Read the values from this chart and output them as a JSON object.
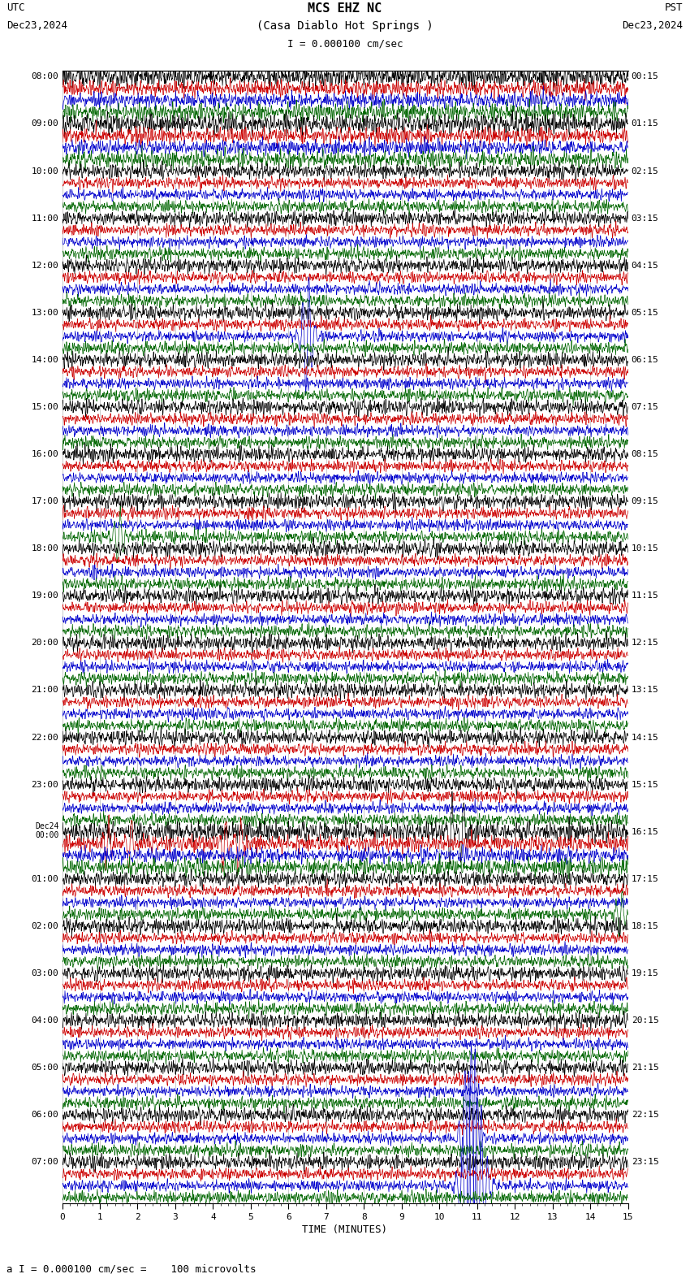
{
  "title_line1": "MCS EHZ NC",
  "title_line2": "(Casa Diablo Hot Springs )",
  "scale_text": "I = 0.000100 cm/sec",
  "footer_text": "a I = 0.000100 cm/sec =    100 microvolts",
  "utc_label": "UTC",
  "utc_date": "Dec23,2024",
  "pst_label": "PST",
  "pst_date": "Dec23,2024",
  "xlabel": "TIME (MINUTES)",
  "x_ticks": [
    0,
    1,
    2,
    3,
    4,
    5,
    6,
    7,
    8,
    9,
    10,
    11,
    12,
    13,
    14,
    15
  ],
  "bg_color": "#ffffff",
  "trace_colors": [
    "#000000",
    "#cc0000",
    "#0000cc",
    "#006600"
  ],
  "grid_color": "#888888",
  "num_hour_groups": 24,
  "traces_per_group": 4,
  "xmin": 0,
  "xmax": 15,
  "utc_times": [
    "08:00",
    "09:00",
    "10:00",
    "11:00",
    "12:00",
    "13:00",
    "14:00",
    "15:00",
    "16:00",
    "17:00",
    "18:00",
    "19:00",
    "20:00",
    "21:00",
    "22:00",
    "23:00",
    "Dec24\n00:00",
    "01:00",
    "02:00",
    "03:00",
    "04:00",
    "05:00",
    "06:00",
    "07:00"
  ],
  "pst_times": [
    "00:15",
    "01:15",
    "02:15",
    "03:15",
    "04:15",
    "05:15",
    "06:15",
    "07:15",
    "08:15",
    "09:15",
    "10:15",
    "11:15",
    "12:15",
    "13:15",
    "14:15",
    "15:15",
    "16:15",
    "17:15",
    "18:15",
    "19:15",
    "20:15",
    "21:15",
    "22:15",
    "23:15"
  ],
  "font_size_title": 10,
  "font_size_labels": 8,
  "font_size_axis": 8
}
